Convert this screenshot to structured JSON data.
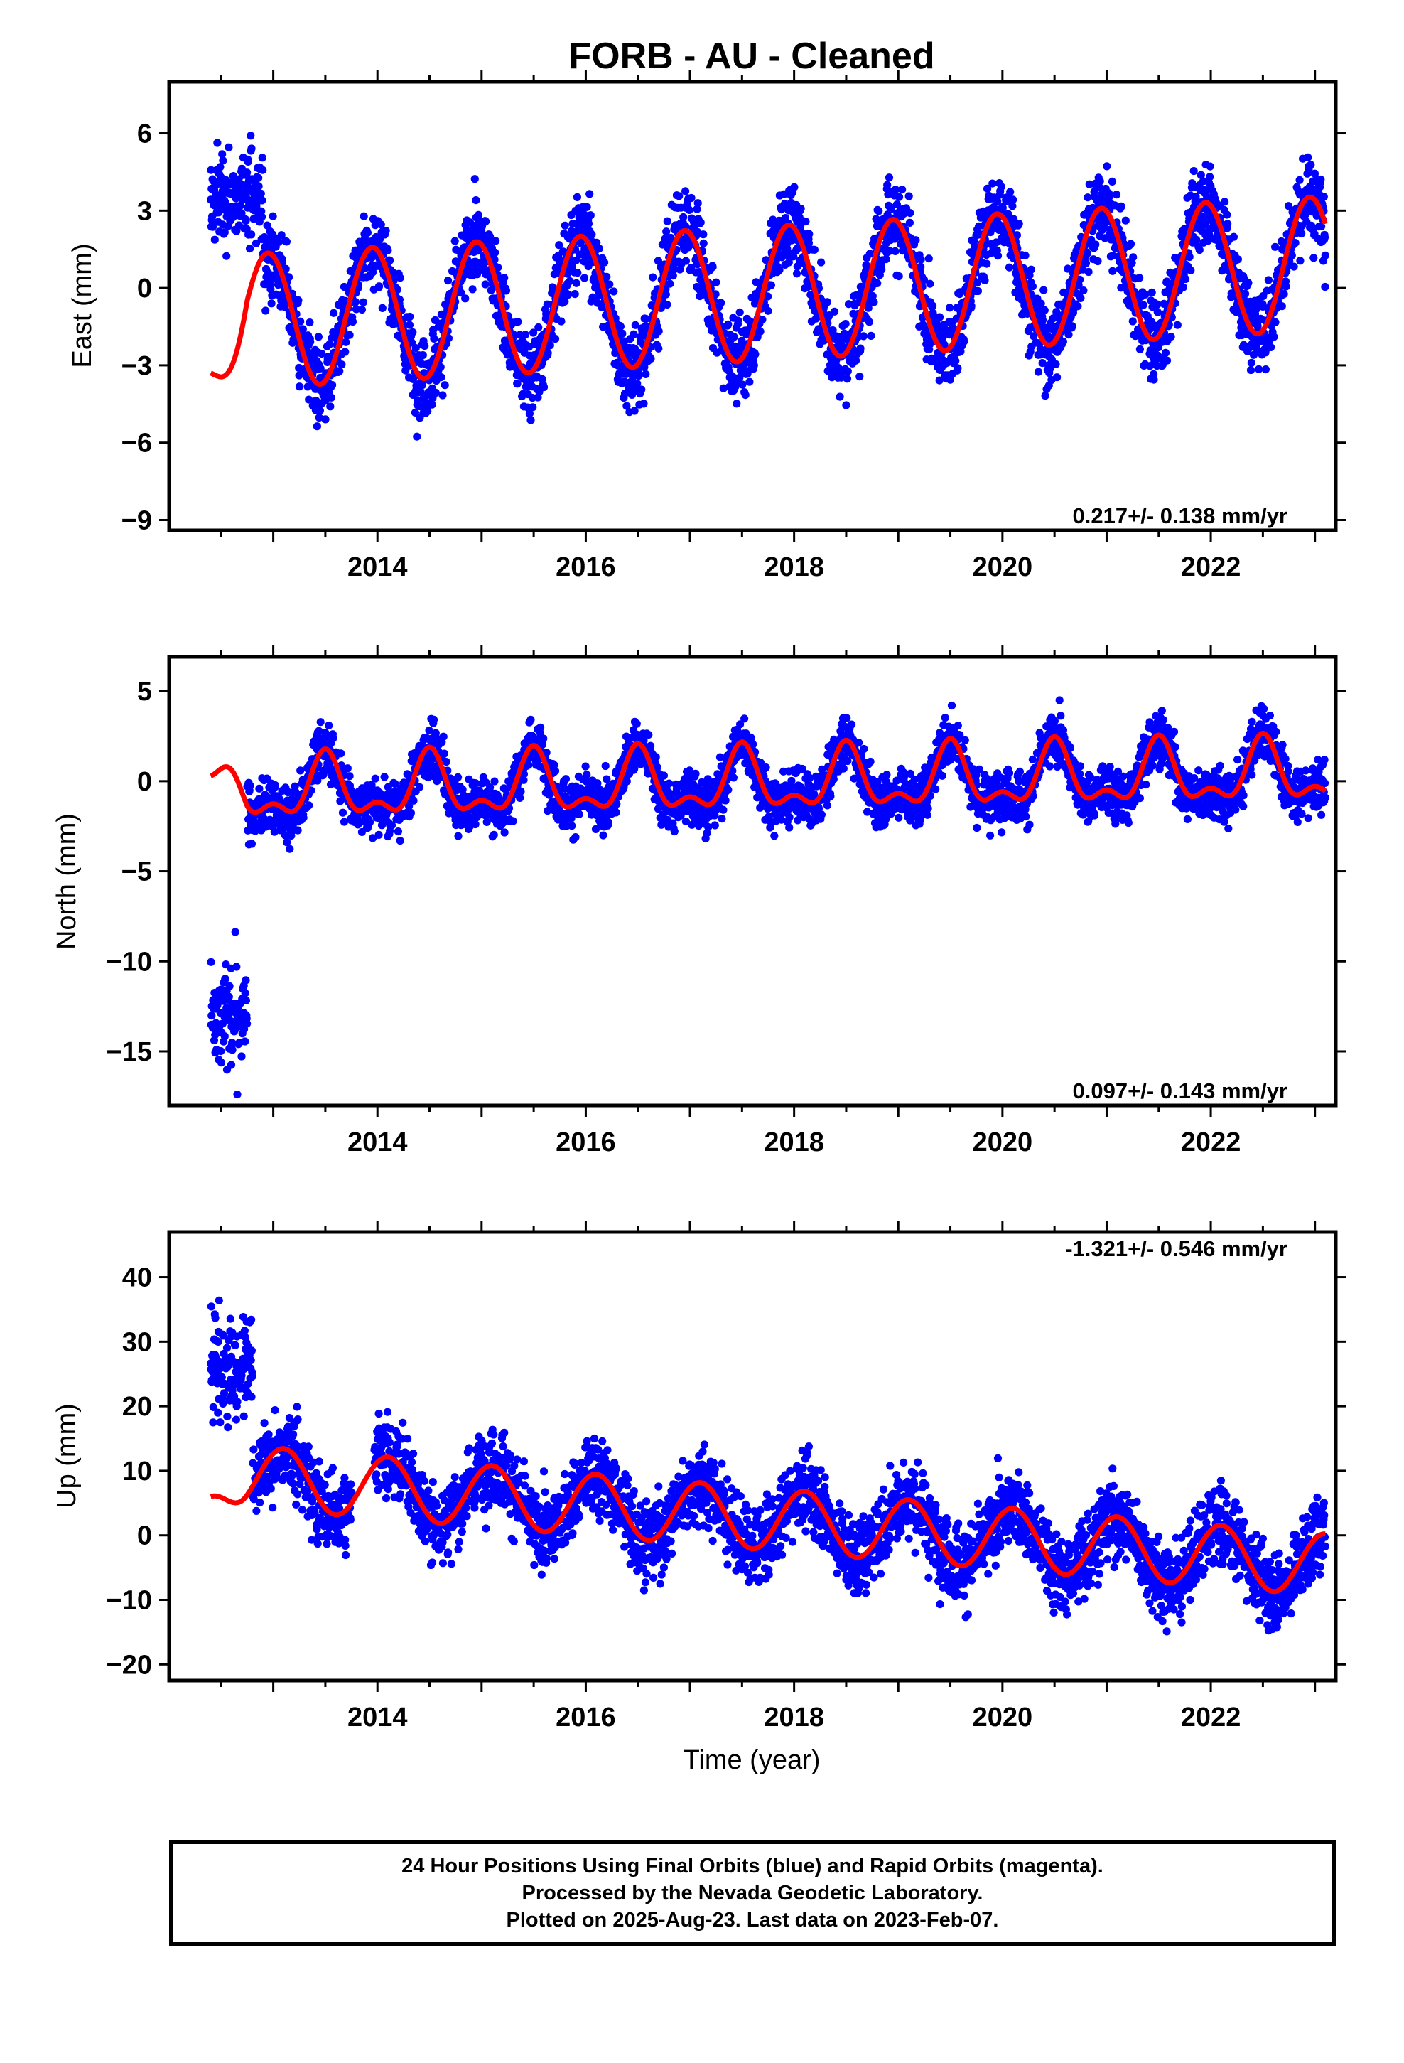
{
  "title": "FORB  - AU - Cleaned",
  "xlabel": "Time (year)",
  "footer": [
    "24 Hour Positions Using Final Orbits (blue) and Rapid Orbits (magenta).",
    "Processed by the Nevada Geodetic Laboratory.",
    "Plotted on 2025-Aug-23. Last data on 2023-Feb-07."
  ],
  "colors": {
    "points": "#0000ff",
    "fit": "#ff0000",
    "frame": "#000000"
  },
  "chart_data": [
    {
      "type": "scatter",
      "panel": "east",
      "ylabel": "East (mm)",
      "rate": "0.217+/- 0.138 mm/yr",
      "xlim": [
        2012.0,
        2023.2
      ],
      "ylim": [
        -9.4,
        8.0
      ],
      "yticks": [
        6,
        3,
        0,
        -3,
        -6,
        -9
      ],
      "xticks": [
        2014,
        2016,
        2018,
        2020,
        2022
      ],
      "series": [
        {
          "kind": "points",
          "x_start": 2012.4,
          "x_end": 2023.1,
          "trend": 0.217,
          "offset": -0.2,
          "annual_amp": 2.6,
          "annual_peak": 0.95,
          "semi_amp": 0.0,
          "semi_peak": 0.0,
          "noise": 1.1,
          "gaps": [],
          "early": {
            "until": 2012.9,
            "mean": 3.6,
            "spread": 1.2
          }
        },
        {
          "kind": "fit",
          "x_start": 2012.4,
          "x_end": 2023.1,
          "trend": 0.217,
          "offset": -0.2,
          "annual_amp": 2.6,
          "annual_peak": 0.95,
          "semi_amp": 0.0,
          "semi_peak": 0.0,
          "early_start": -3.3
        }
      ]
    },
    {
      "type": "scatter",
      "panel": "north",
      "ylabel": "North (mm)",
      "rate": "0.097+/- 0.143 mm/yr",
      "xlim": [
        2012.0,
        2023.2
      ],
      "ylim": [
        -18.0,
        6.9
      ],
      "yticks": [
        5,
        0,
        -5,
        -10,
        -15
      ],
      "xticks": [
        2014,
        2016,
        2018,
        2020,
        2022
      ],
      "series": [
        {
          "kind": "points",
          "x_start": 2012.4,
          "x_end": 2023.1,
          "trend": 0.097,
          "offset": -0.1,
          "annual_amp": 1.5,
          "annual_peak": 0.5,
          "semi_amp": 0.8,
          "semi_peak": 0.5,
          "noise": 1.0,
          "gaps": [],
          "early": {
            "until": 2012.75,
            "mean": -13.0,
            "spread": 2.0
          }
        },
        {
          "kind": "fit",
          "x_start": 2012.4,
          "x_end": 2023.1,
          "trend": 0.097,
          "offset": -0.1,
          "annual_amp": 1.5,
          "annual_peak": 0.5,
          "semi_amp": 0.8,
          "semi_peak": 0.5,
          "early_start": 0.3
        }
      ]
    },
    {
      "type": "scatter",
      "panel": "up",
      "ylabel": "Up (mm)",
      "rate": "-1.321+/- 0.546 mm/yr",
      "xlim": [
        2012.0,
        2023.2
      ],
      "ylim": [
        -22.5,
        47.0
      ],
      "yticks": [
        40,
        30,
        20,
        10,
        0,
        -10,
        -20
      ],
      "xticks": [
        2014,
        2016,
        2018,
        2020,
        2022
      ],
      "series": [
        {
          "kind": "points",
          "x_start": 2012.4,
          "x_end": 2023.1,
          "trend": -1.321,
          "offset": 2.5,
          "annual_amp": 4.8,
          "annual_peak": 0.1,
          "semi_amp": 0.0,
          "semi_peak": 0.0,
          "noise": 4.2,
          "gaps": [
            [
              2013.75,
              2013.97
            ]
          ],
          "early": {
            "until": 2012.8,
            "mean": 26.0,
            "spread": 5.5
          }
        },
        {
          "kind": "fit",
          "x_start": 2012.4,
          "x_end": 2023.1,
          "trend": -1.321,
          "offset": 2.5,
          "annual_amp": 4.8,
          "annual_peak": 0.1,
          "semi_amp": 0.0,
          "semi_peak": 0.0,
          "early_start": 6.0
        }
      ]
    }
  ]
}
